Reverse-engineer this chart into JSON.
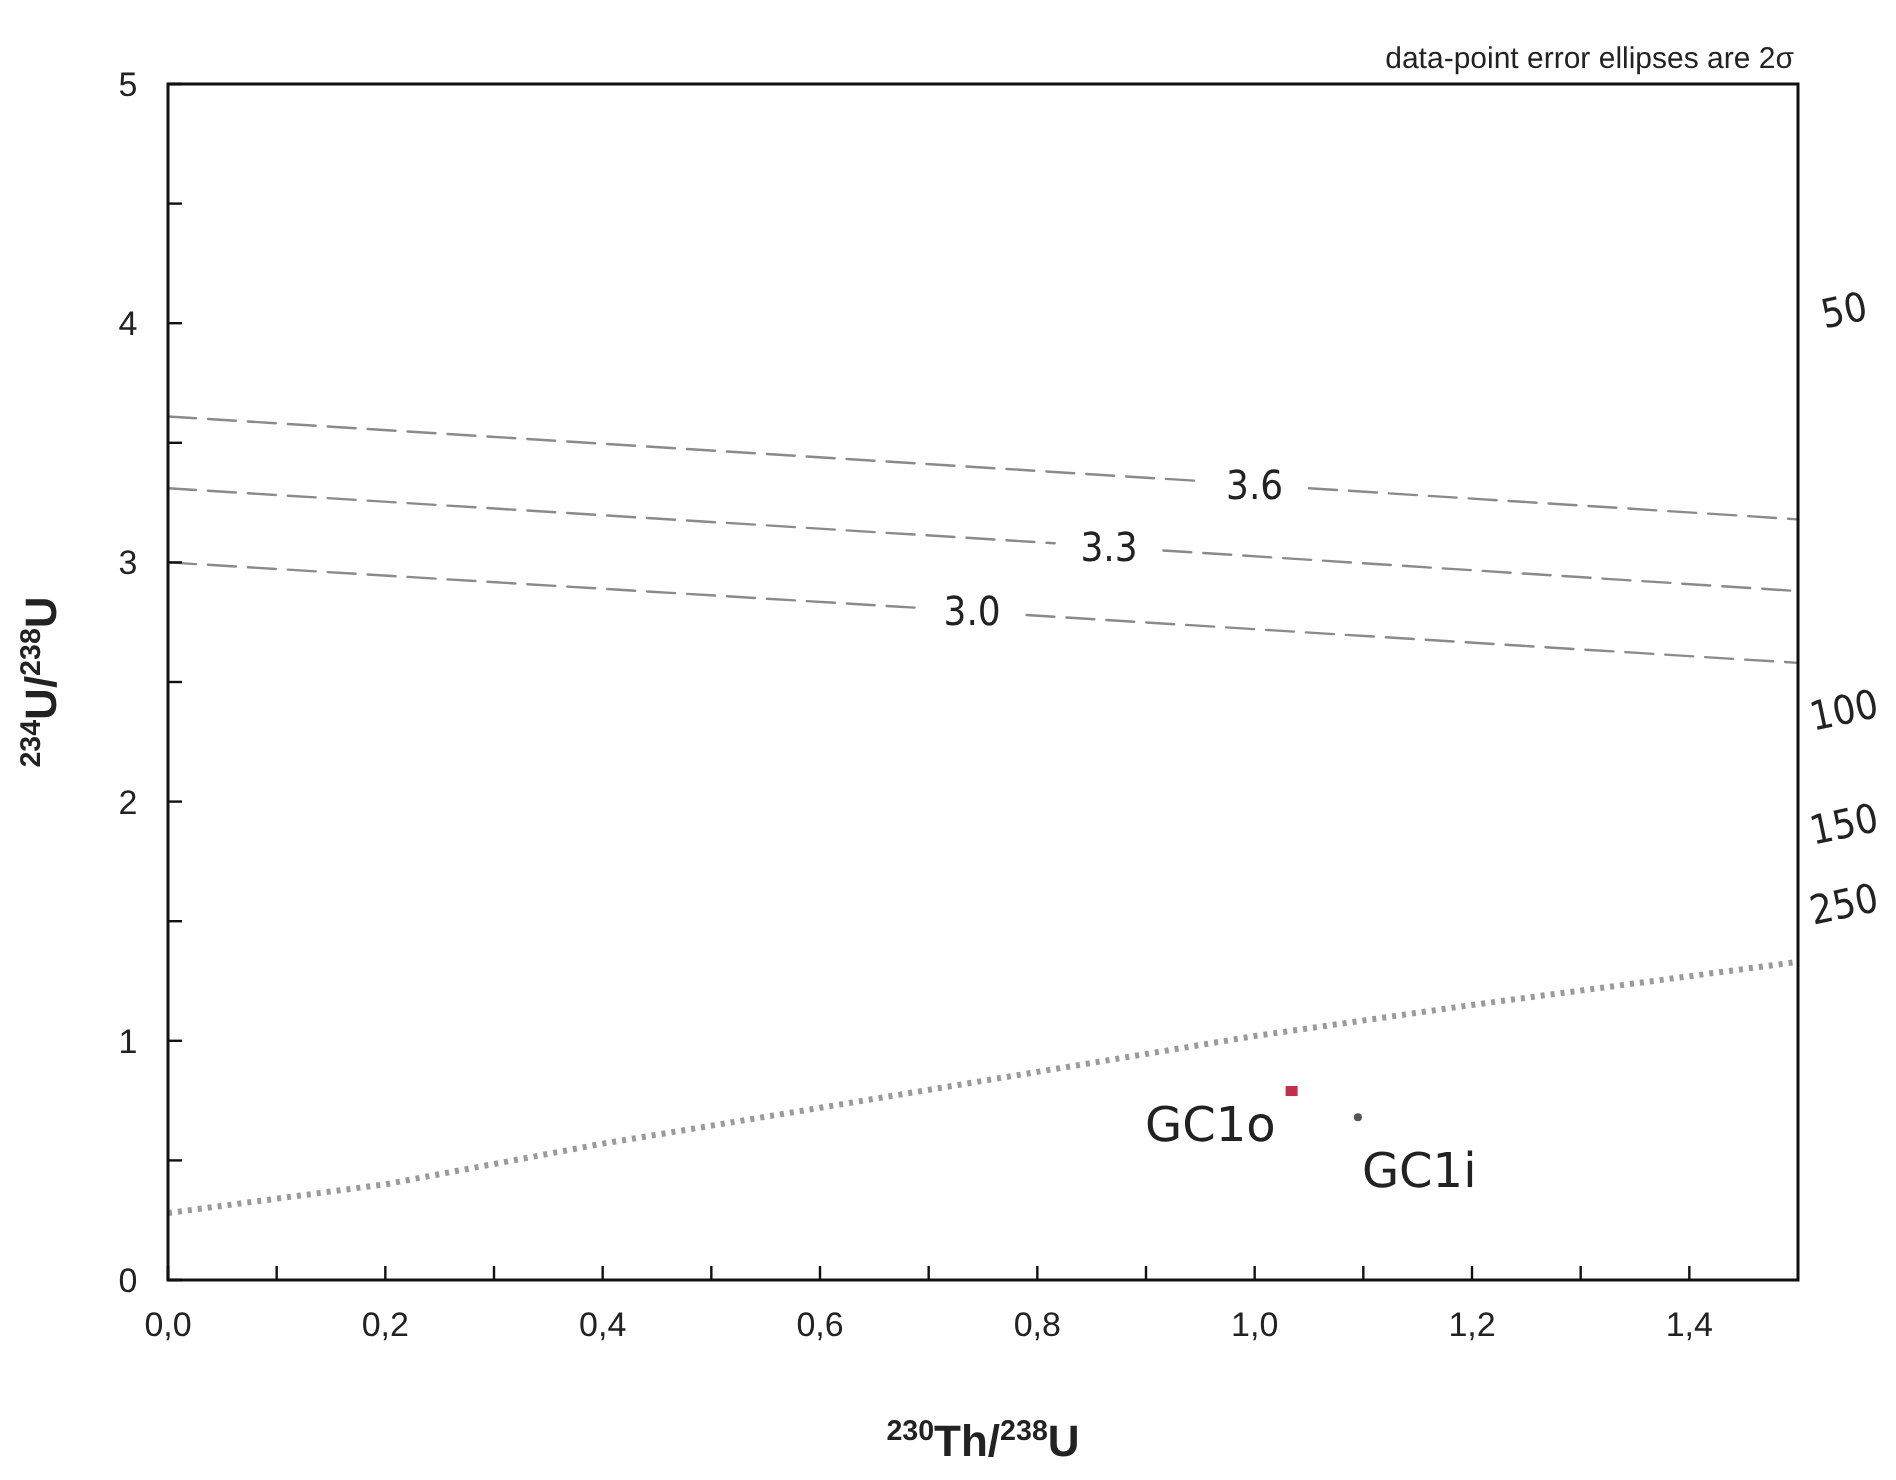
{
  "chart_data": {
    "type": "line",
    "xlabel": "$^{230}$Th/$^{238}$U",
    "ylabel": "$^{234}$U/$^{238}$U",
    "annotations": [
      "data-point error ellipses are 2σ",
      "50",
      "100",
      "150",
      "250"
    ],
    "xlim": [
      0,
      1.5
    ],
    "ylim": [
      0,
      5
    ],
    "xticks": [
      {
        "value": 0,
        "label": "0,0"
      },
      {
        "value": 0.1,
        "label": null
      },
      {
        "value": 0.2,
        "label": "0,2"
      },
      {
        "value": 0.3,
        "label": null
      },
      {
        "value": 0.4,
        "label": "0,4"
      },
      {
        "value": 0.5,
        "label": null
      },
      {
        "value": 0.6,
        "label": "0,6"
      },
      {
        "value": 0.7,
        "label": null
      },
      {
        "value": 0.8,
        "label": "0,8"
      },
      {
        "value": 0.9,
        "label": null
      },
      {
        "value": 1.0,
        "label": "1,0"
      },
      {
        "value": 1.1,
        "label": null
      },
      {
        "value": 1.2,
        "label": "1,2"
      },
      {
        "value": 1.3,
        "label": null
      },
      {
        "value": 1.4,
        "label": "1,4"
      }
    ],
    "yticks": [
      0,
      {
        "value": 0.5,
        "label": null
      },
      1,
      {
        "value": 1.5,
        "label": null
      },
      2,
      {
        "value": 2.5,
        "label": null
      },
      3,
      {
        "value": 3.5,
        "label": null
      },
      4,
      {
        "value": 4.5,
        "label": null
      },
      5
    ],
    "grid": false,
    "series": [
      {
        "name": "3.0",
        "line_style": "dashed",
        "color": "#8a8a8a",
        "x": [
          0,
          0.69,
          0.74,
          0.79,
          1.5
        ],
        "values": [
          3.0,
          2.81,
          null,
          2.78,
          2.58
        ]
      },
      {
        "name": "3.3",
        "line_style": "dashed",
        "color": "#8a8a8a",
        "x": [
          0,
          0.816,
          0.866,
          0.916,
          1.5
        ],
        "values": [
          3.31,
          3.08,
          null,
          3.05,
          2.88
        ]
      },
      {
        "name": "3.6",
        "line_style": "dashed",
        "color": "#8a8a8a",
        "x": [
          0,
          0.95,
          1.0,
          1.05,
          1.5
        ],
        "values": [
          3.61,
          3.34,
          null,
          3.31,
          3.18
        ]
      },
      {
        "line_style": "dotted",
        "color": "#9a9a9a",
        "x": [
          0,
          0.2,
          0.4,
          0.6,
          0.8,
          1.0,
          1.2,
          1.5
        ],
        "values": [
          0.28,
          0.4,
          0.57,
          0.72,
          0.87,
          1.02,
          1.15,
          1.33
        ]
      },
      {
        "name": "GC1o",
        "type": "scatter",
        "marker": "square",
        "color": "#c0304a",
        "x": [
          1.034
        ],
        "values": [
          0.79
        ]
      },
      {
        "name": "GC1i",
        "type": "scatter",
        "marker": "circle",
        "color": "#555555",
        "x": [
          1.095
        ],
        "values": [
          0.68
        ]
      }
    ]
  }
}
